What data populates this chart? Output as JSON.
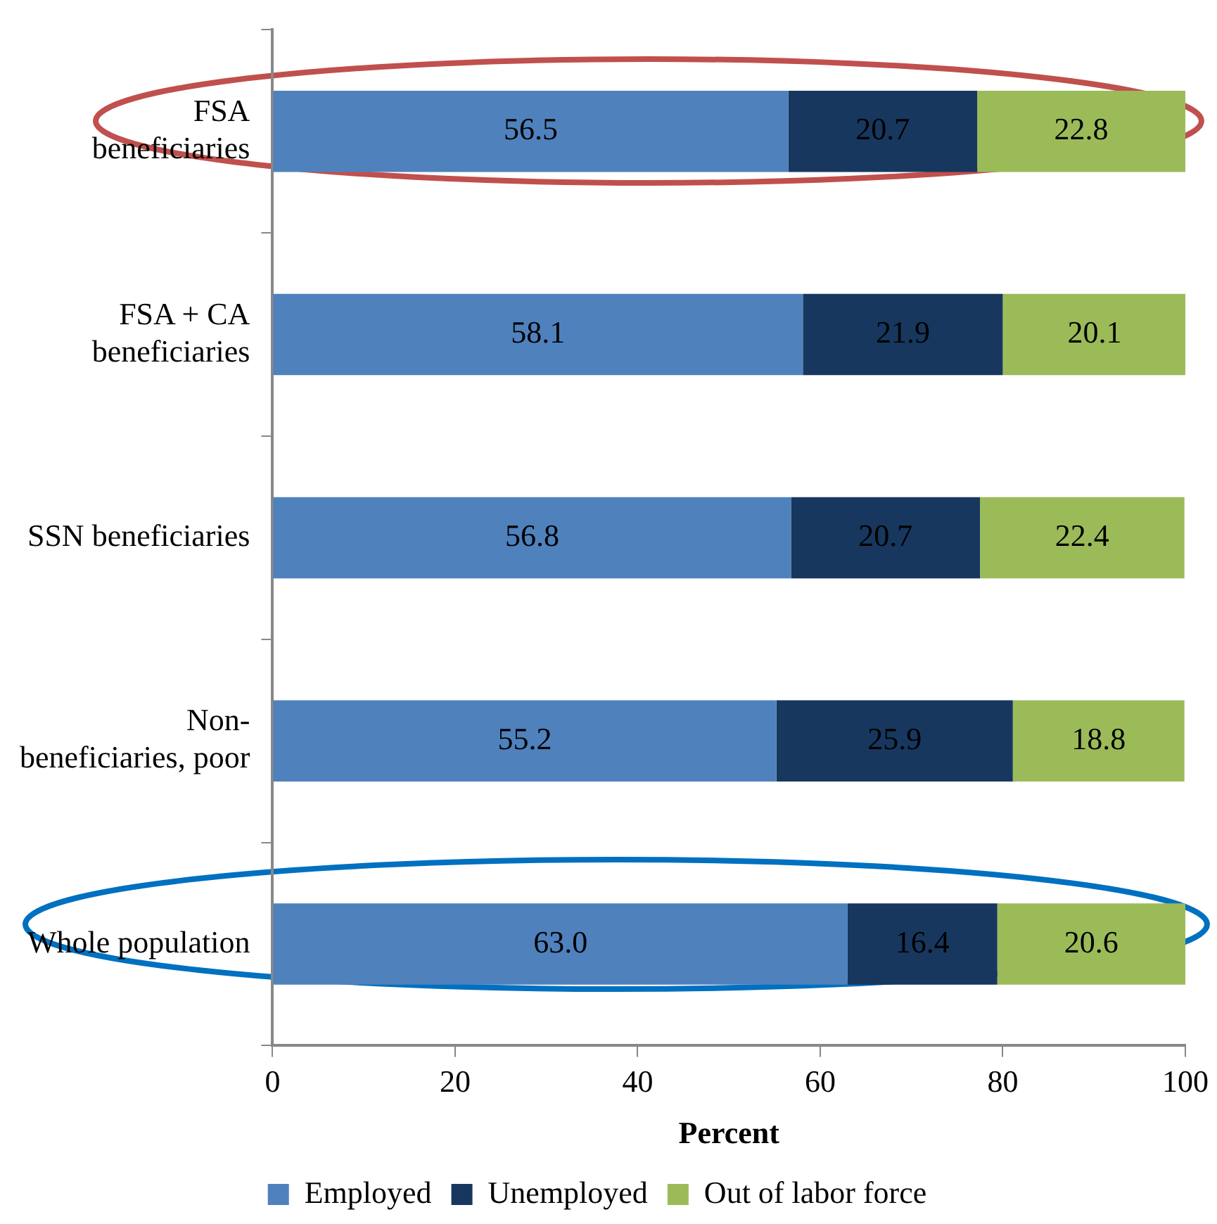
{
  "chart_data": {
    "type": "bar",
    "orientation": "horizontal",
    "stacked": true,
    "xlabel": "Percent",
    "categories": [
      "FSA\nbeneficiaries",
      "FSA + CA\nbeneficiaries",
      "SSN beneficiaries",
      "Non-\nbeneficiaries, poor",
      "Whole population"
    ],
    "series": [
      {
        "name": "Employed",
        "color": "#4f81bd",
        "values": [
          56.5,
          58.1,
          56.8,
          55.2,
          63.0
        ]
      },
      {
        "name": "Unemployed",
        "color": "#17375e",
        "values": [
          20.7,
          21.9,
          20.7,
          25.9,
          16.4
        ]
      },
      {
        "name": "Out of labor force",
        "color": "#9bbb59",
        "values": [
          22.8,
          20.1,
          22.4,
          18.8,
          20.6
        ]
      }
    ],
    "value_labels": [
      [
        "56.5",
        "58.1",
        "56.8",
        "55.2",
        "63.0"
      ],
      [
        "20.7",
        "21.9",
        "20.7",
        "25.9",
        "16.4"
      ],
      [
        "22.8",
        "20.1",
        "22.4",
        "18.8",
        "20.6"
      ]
    ],
    "xlim": [
      0,
      100
    ],
    "xticks": [
      0,
      20,
      40,
      60,
      80,
      100
    ],
    "grid": false,
    "legend": "bottom"
  }
}
